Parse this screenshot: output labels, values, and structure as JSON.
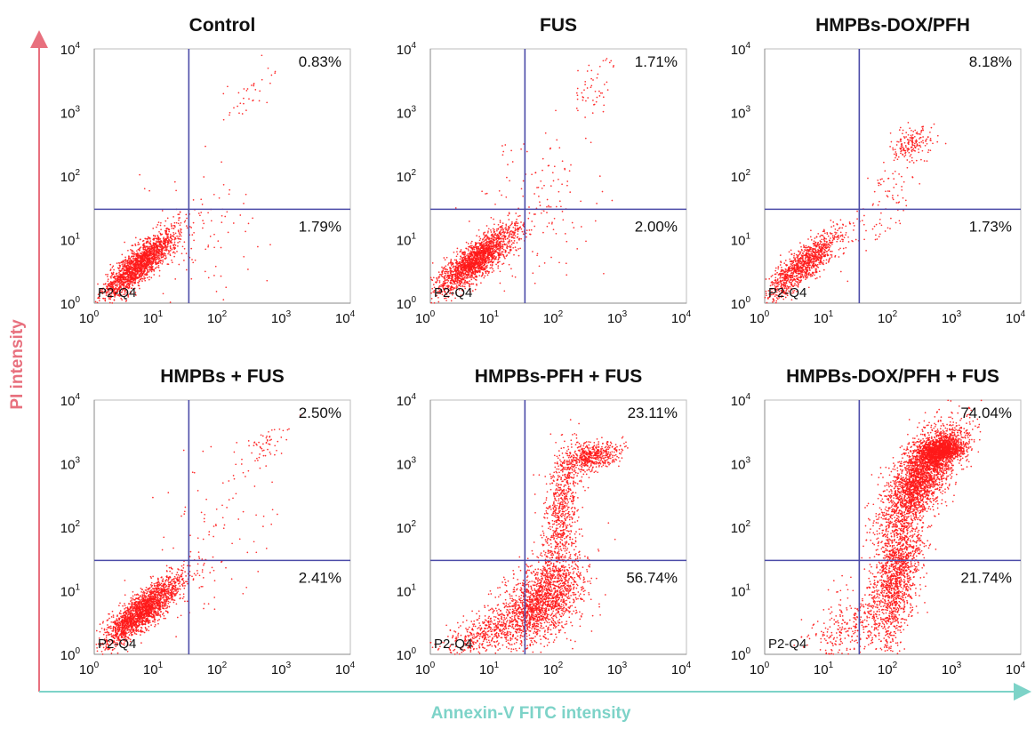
{
  "figure": {
    "y_axis_title": "PI intensity",
    "x_axis_title": "Annexin-V FITC intensity",
    "colors": {
      "y_axis": "#e8707e",
      "x_axis": "#7dd3c8",
      "dots": "#ff1a1a",
      "gate_lines": "#4b4ba8",
      "frame": "#bdbdbd"
    }
  },
  "chart_data": [
    {
      "type": "scatter",
      "title": "Control",
      "xscale": "log",
      "yscale": "log",
      "xlim": [
        1,
        10000
      ],
      "ylim": [
        1,
        10000
      ],
      "xticks": [
        "10",
        "10",
        "10",
        "10",
        "10"
      ],
      "xtick_exp": [
        "0",
        "1",
        "2",
        "3",
        "4"
      ],
      "yticks": [
        "10",
        "10",
        "10",
        "10",
        "10"
      ],
      "ytick_exp": [
        "0",
        "1",
        "2",
        "3",
        "4"
      ],
      "gate": {
        "x": 30,
        "y": 30
      },
      "gate_label": "P2-Q4",
      "quadrants": {
        "upper_right": "0.83%",
        "lower_right": "1.79%"
      },
      "populations": [
        {
          "count": 1800,
          "x_log": 0.72,
          "y_log": 0.62,
          "sx": 0.28,
          "sy": 0.27,
          "rho": 0.85
        },
        {
          "count": 110,
          "x_log": 1.6,
          "y_log": 1.0,
          "sx": 0.5,
          "sy": 0.55,
          "rho": 0.2
        },
        {
          "count": 35,
          "x_log": 2.45,
          "y_log": 3.35,
          "sx": 0.22,
          "sy": 0.25,
          "rho": 0.5
        }
      ]
    },
    {
      "type": "scatter",
      "title": "FUS",
      "xscale": "log",
      "yscale": "log",
      "xlim": [
        1,
        10000
      ],
      "ylim": [
        1,
        10000
      ],
      "xticks": [
        "10",
        "10",
        "10",
        "10",
        "10"
      ],
      "xtick_exp": [
        "0",
        "1",
        "2",
        "3",
        "4"
      ],
      "yticks": [
        "10",
        "10",
        "10",
        "10",
        "10"
      ],
      "ytick_exp": [
        "0",
        "1",
        "2",
        "3",
        "4"
      ],
      "gate": {
        "x": 30,
        "y": 30
      },
      "gate_label": "P2-Q4",
      "quadrants": {
        "upper_right": "1.71%",
        "lower_right": "2.00%"
      },
      "populations": [
        {
          "count": 1900,
          "x_log": 0.72,
          "y_log": 0.68,
          "sx": 0.3,
          "sy": 0.26,
          "rho": 0.82
        },
        {
          "count": 140,
          "x_log": 1.7,
          "y_log": 1.4,
          "sx": 0.5,
          "sy": 0.7,
          "rho": 0.3
        },
        {
          "count": 55,
          "x_log": 2.55,
          "y_log": 3.35,
          "sx": 0.2,
          "sy": 0.3,
          "rho": 0.6
        }
      ]
    },
    {
      "type": "scatter",
      "title": "HMPBs-DOX/PFH",
      "xscale": "log",
      "yscale": "log",
      "xlim": [
        1,
        10000
      ],
      "ylim": [
        1,
        10000
      ],
      "xticks": [
        "10",
        "10",
        "10",
        "10",
        "10"
      ],
      "xtick_exp": [
        "0",
        "1",
        "2",
        "3",
        "4"
      ],
      "yticks": [
        "10",
        "10",
        "10",
        "10",
        "10"
      ],
      "ytick_exp": [
        "0",
        "1",
        "2",
        "3",
        "4"
      ],
      "gate": {
        "x": 30,
        "y": 30
      },
      "gate_label": "P2-Q4",
      "quadrants": {
        "upper_right": "8.18%",
        "lower_right": "1.73%"
      },
      "populations": [
        {
          "count": 1100,
          "x_log": 0.6,
          "y_log": 0.6,
          "sx": 0.3,
          "sy": 0.27,
          "rho": 0.85
        },
        {
          "count": 90,
          "x_log": 1.9,
          "y_log": 1.6,
          "sx": 0.25,
          "sy": 0.45,
          "rho": 0.6
        },
        {
          "count": 170,
          "x_log": 2.3,
          "y_log": 2.5,
          "sx": 0.18,
          "sy": 0.12,
          "rho": 0.3
        }
      ]
    },
    {
      "type": "scatter",
      "title": "HMPBs + FUS",
      "xscale": "log",
      "yscale": "log",
      "xlim": [
        1,
        10000
      ],
      "ylim": [
        1,
        10000
      ],
      "xticks": [
        "10",
        "10",
        "10",
        "10",
        "10"
      ],
      "xtick_exp": [
        "0",
        "1",
        "2",
        "3",
        "4"
      ],
      "yticks": [
        "10",
        "10",
        "10",
        "10",
        "10"
      ],
      "ytick_exp": [
        "0",
        "1",
        "2",
        "3",
        "4"
      ],
      "gate": {
        "x": 30,
        "y": 30
      },
      "gate_label": "P2-Q4",
      "quadrants": {
        "upper_right": "2.50%",
        "lower_right": "2.41%"
      },
      "populations": [
        {
          "count": 2000,
          "x_log": 0.75,
          "y_log": 0.68,
          "sx": 0.3,
          "sy": 0.27,
          "rho": 0.85
        },
        {
          "count": 110,
          "x_log": 1.8,
          "y_log": 1.7,
          "sx": 0.45,
          "sy": 0.65,
          "rho": 0.45
        },
        {
          "count": 60,
          "x_log": 2.65,
          "y_log": 3.3,
          "sx": 0.18,
          "sy": 0.15,
          "rho": 0.5
        }
      ]
    },
    {
      "type": "scatter",
      "title": "HMPBs-PFH + FUS",
      "xscale": "log",
      "yscale": "log",
      "xlim": [
        1,
        10000
      ],
      "ylim": [
        1,
        10000
      ],
      "xticks": [
        "10",
        "10",
        "10",
        "10",
        "10"
      ],
      "xtick_exp": [
        "0",
        "1",
        "2",
        "3",
        "4"
      ],
      "yticks": [
        "10",
        "10",
        "10",
        "10",
        "10"
      ],
      "ytick_exp": [
        "0",
        "1",
        "2",
        "3",
        "4"
      ],
      "gate": {
        "x": 30,
        "y": 30
      },
      "gate_label": "P2-Q4",
      "quadrants": {
        "upper_right": "23.11%",
        "lower_right": "56.74%"
      },
      "populations": [
        {
          "count": 1700,
          "x_log": 1.75,
          "y_log": 0.85,
          "sx": 0.32,
          "sy": 0.35,
          "rho": 0.5
        },
        {
          "count": 500,
          "x_log": 0.9,
          "y_log": 0.35,
          "sx": 0.38,
          "sy": 0.25,
          "rho": 0.7
        },
        {
          "count": 650,
          "x_log": 2.05,
          "y_log": 2.25,
          "sx": 0.14,
          "sy": 0.5,
          "rho": 0.3
        },
        {
          "count": 550,
          "x_log": 2.5,
          "y_log": 3.1,
          "sx": 0.22,
          "sy": 0.12,
          "rho": 0.4
        }
      ]
    },
    {
      "type": "scatter",
      "title": "HMPBs-DOX/PFH + FUS",
      "xscale": "log",
      "yscale": "log",
      "xlim": [
        1,
        10000
      ],
      "ylim": [
        1,
        10000
      ],
      "xticks": [
        "10",
        "10",
        "10",
        "10",
        "10"
      ],
      "xtick_exp": [
        "0",
        "1",
        "2",
        "3",
        "4"
      ],
      "yticks": [
        "10",
        "10",
        "10",
        "10",
        "10"
      ],
      "ytick_exp": [
        "0",
        "1",
        "2",
        "3",
        "4"
      ],
      "gate": {
        "x": 30,
        "y": 30
      },
      "gate_label": "P2-Q4",
      "quadrants": {
        "upper_right": "74.04%",
        "lower_right": "21.74%"
      },
      "populations": [
        {
          "count": 1500,
          "x_log": 2.05,
          "y_log": 1.25,
          "sx": 0.2,
          "sy": 0.55,
          "rho": 0.45
        },
        {
          "count": 2400,
          "x_log": 2.45,
          "y_log": 2.8,
          "sx": 0.3,
          "sy": 0.42,
          "rho": 0.7
        },
        {
          "count": 1300,
          "x_log": 2.75,
          "y_log": 3.2,
          "sx": 0.2,
          "sy": 0.12,
          "rho": 0.4
        },
        {
          "count": 300,
          "x_log": 1.3,
          "y_log": 0.4,
          "sx": 0.35,
          "sy": 0.3,
          "rho": 0.5
        }
      ]
    }
  ]
}
